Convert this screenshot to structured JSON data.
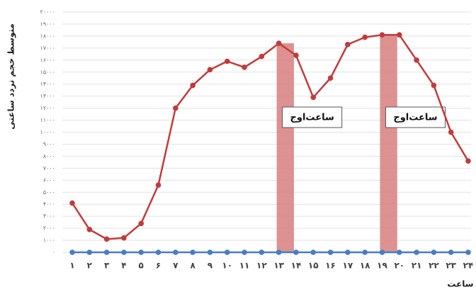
{
  "chart_data": {
    "type": "line",
    "y_label": "متوسط حجم تردد ساعتی",
    "x_label": "ساعت",
    "categories": [
      "۱",
      "۲",
      "۳",
      "۴",
      "۵",
      "۶",
      "۷",
      "۸",
      "۹",
      "۱۰",
      "۱۱",
      "۱۲",
      "۱۳",
      "۱۴",
      "۱۵",
      "۱۶",
      "۱۷",
      "۱۸",
      "۱۹",
      "۲۰",
      "۲۱",
      "۲۲",
      "۲۳",
      "۲۴"
    ],
    "series": [
      {
        "color": "#c23b3b",
        "values": [
          4100,
          1900,
          1100,
          1200,
          2400,
          5600,
          12000,
          13900,
          15200,
          15900,
          15400,
          16300,
          17400,
          16400,
          12900,
          14500,
          17300,
          17900,
          18100,
          18100,
          16000,
          13900,
          10000,
          7600
        ]
      },
      {
        "color": "#4a7cc4",
        "values": [
          0,
          0,
          0,
          0,
          0,
          0,
          0,
          0,
          0,
          0,
          0,
          0,
          0,
          0,
          0,
          0,
          0,
          0,
          0,
          0,
          0,
          0,
          0,
          0
        ]
      }
    ],
    "highlights": [
      {
        "from": "۱۳",
        "to": "۱۴",
        "label": "ساعت‌اوج",
        "color": "#d98585"
      },
      {
        "from": "۱۹",
        "to": "۲۰",
        "label": "ساعت‌اوج",
        "color": "#d98585"
      }
    ],
    "ylim": [
      0,
      20000
    ],
    "yticks": [
      {
        "value": 0,
        "label": "۰"
      },
      {
        "value": 1000,
        "label": "۱۰۰۰"
      },
      {
        "value": 2000,
        "label": "۲۰۰۰"
      },
      {
        "value": 3000,
        "label": "۳۰۰۰"
      },
      {
        "value": 4000,
        "label": "۴۰۰۰"
      },
      {
        "value": 5000,
        "label": "۵۰۰۰"
      },
      {
        "value": 6000,
        "label": "۶۰۰۰"
      },
      {
        "value": 7000,
        "label": "۷۰۰۰"
      },
      {
        "value": 8000,
        "label": "۸۰۰۰"
      },
      {
        "value": 9000,
        "label": "۹۰۰۰"
      },
      {
        "value": 10000,
        "label": "۱۰۰۰۰"
      },
      {
        "value": 11000,
        "label": "۱۱۰۰۰"
      },
      {
        "value": 12000,
        "label": "۱۲۰۰۰"
      },
      {
        "value": 13000,
        "label": "۱۳۰۰۰"
      },
      {
        "value": 14000,
        "label": "۱۴۰۰۰"
      },
      {
        "value": 15000,
        "label": "۱۵۰۰۰"
      },
      {
        "value": 16000,
        "label": "۱۶۰۰۰"
      },
      {
        "value": 17000,
        "label": "۱۷۰۰۰"
      },
      {
        "value": 18000,
        "label": "۱۸۰۰۰"
      },
      {
        "value": 19000,
        "label": "۱۹۰۰۰"
      },
      {
        "value": 20000,
        "label": "۲۰۰۰۰"
      }
    ],
    "grid": true
  }
}
